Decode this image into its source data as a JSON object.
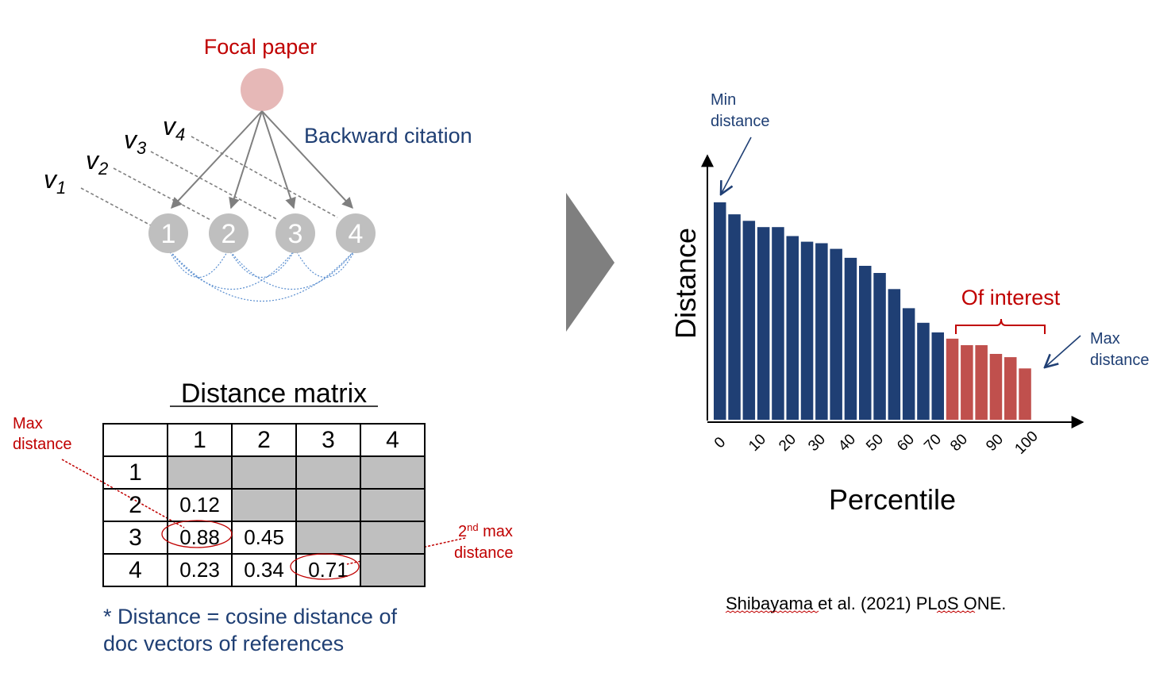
{
  "network": {
    "focal_label": "Focal paper",
    "citation_label": "Backward citation",
    "nodes": [
      "1",
      "2",
      "3",
      "4"
    ],
    "vectors": [
      {
        "base": "v",
        "sub": "1"
      },
      {
        "base": "v",
        "sub": "2"
      },
      {
        "base": "v",
        "sub": "3"
      },
      {
        "base": "v",
        "sub": "4"
      }
    ]
  },
  "matrix": {
    "title": "Distance matrix",
    "col_headers": [
      "1",
      "2",
      "3",
      "4"
    ],
    "rows": [
      {
        "label": "1",
        "cells": [
          "",
          "",
          "",
          ""
        ]
      },
      {
        "label": "2",
        "cells": [
          "0.12",
          "",
          "",
          ""
        ]
      },
      {
        "label": "3",
        "cells": [
          "0.88",
          "0.45",
          "",
          ""
        ]
      },
      {
        "label": "4",
        "cells": [
          "0.23",
          "0.34",
          "0.71",
          ""
        ]
      }
    ],
    "max_label_line1": "Max",
    "max_label_line2": "distance",
    "second_label_sup": "nd",
    "second_label_line1_pre": "2",
    "second_label_line1_post": " max",
    "second_label_line2": "distance",
    "note_line1": "* Distance = cosine distance of",
    "note_line2": "doc vectors of references"
  },
  "chart_data": {
    "type": "bar",
    "ylabel": "Distance",
    "xlabel": "Percentile",
    "tick_labels": [
      "0",
      "10",
      "20",
      "30",
      "40",
      "50",
      "60",
      "70",
      "80",
      "90",
      "100"
    ],
    "values": [
      100,
      94.5,
      91.5,
      88.6,
      88.6,
      84.5,
      81.9,
      81.2,
      78.6,
      74.5,
      70.8,
      67.5,
      60.1,
      51.3,
      44.6,
      40.2,
      37.3,
      34.3,
      34.3,
      30.3,
      28.8,
      23.6
    ],
    "highlight_from_index": 16,
    "colors": {
      "normal": "#1f3f74",
      "highlight": "#c0504d"
    },
    "annotations": {
      "min_line1": "Min",
      "min_line2": "distance",
      "max_line1": "Max",
      "max_line2": "distance",
      "interest": "Of interest"
    }
  },
  "citation": "Shibayama et al. (2021) PLoS ONE.",
  "colors": {
    "red": "#c00000",
    "blue": "#1f3f74",
    "node_gray": "#bfbfbf",
    "focal_pink": "#e6b8b7",
    "arrow_gray": "#808080"
  }
}
